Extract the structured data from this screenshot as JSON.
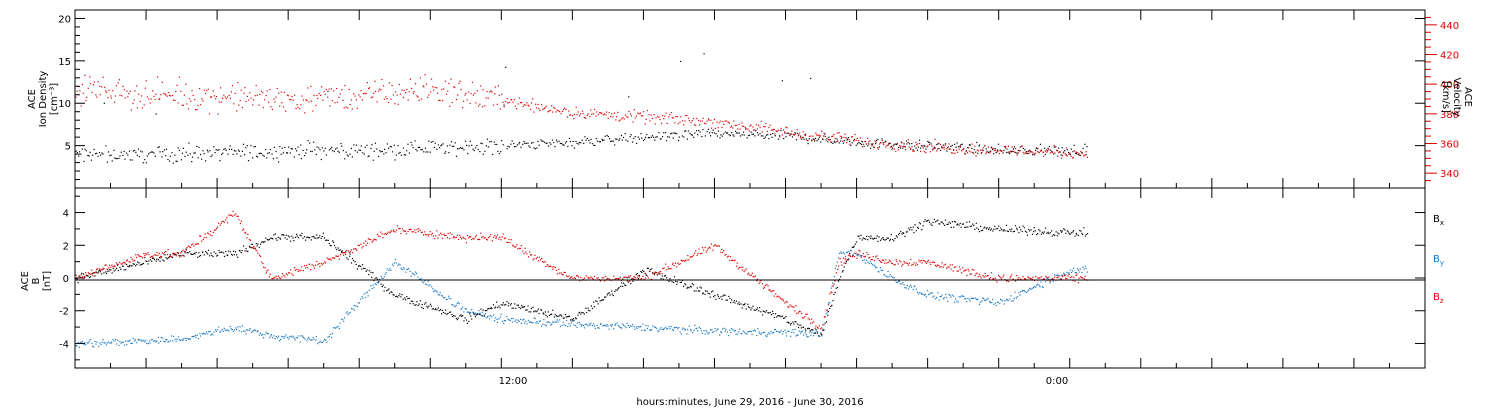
{
  "xlabel": "hours:minutes, June 29, 2016 - June 30, 2016",
  "x_tick_labels": [
    "12:00",
    "0:00"
  ],
  "colors": {
    "density": "#000000",
    "velocity": "#e00000",
    "bx": "#000000",
    "by": "#1a78c2",
    "bz": "#e00000"
  },
  "chart_data": [
    {
      "type": "scatter",
      "panel": "top",
      "left_axis": {
        "title_lines": [
          "ACE",
          "Ion Density",
          "[cm⁻³]"
        ],
        "ylim": [
          0,
          21
        ],
        "ticks": [
          5,
          10,
          15,
          20
        ],
        "tick_labels": [
          "5",
          "10",
          "15",
          "20"
        ]
      },
      "right_axis": {
        "title_lines": [
          "ACE",
          "Velocity",
          "[km/s]"
        ],
        "ylim": [
          330,
          450
        ],
        "ticks": [
          340,
          360,
          380,
          400,
          420,
          440
        ],
        "tick_labels": [
          "340",
          "360",
          "380",
          "400",
          "420",
          "440"
        ]
      },
      "xlim_hours": [
        0,
        38
      ],
      "series": [
        {
          "name": "",
          "axis": "left",
          "color": "#000000",
          "x_hours": [
            0,
            2,
            4,
            6,
            8,
            10,
            12,
            14,
            16,
            18,
            20,
            22,
            24,
            26,
            28
          ],
          "values": [
            4,
            4,
            4.2,
            4.5,
            4.5,
            4.8,
            5,
            5.5,
            6,
            6.5,
            6.2,
            5.5,
            5,
            4.5,
            4.5
          ]
        },
        {
          "name": "",
          "axis": "right",
          "color": "#e00000",
          "x_hours": [
            0,
            2,
            4,
            6,
            8,
            10,
            12,
            14,
            16,
            18,
            20,
            22,
            24,
            26,
            28
          ],
          "values": [
            398,
            393,
            392,
            390,
            392,
            397,
            390,
            381,
            378,
            375,
            368,
            362,
            358,
            356,
            354
          ]
        }
      ]
    },
    {
      "type": "scatter",
      "panel": "bottom",
      "left_axis": {
        "title_lines": [
          "ACE",
          "B",
          "[nT]"
        ],
        "ylim": [
          -5.5,
          5.5
        ],
        "ticks": [
          -4,
          -2,
          0,
          2,
          4
        ],
        "tick_labels": [
          "-4",
          "-2",
          "0",
          "2",
          "4"
        ]
      },
      "legend": [
        {
          "label": "B",
          "sub": "x",
          "color": "#000000"
        },
        {
          "label": "B",
          "sub": "y",
          "color": "#1a78c2"
        },
        {
          "label": "B",
          "sub": "z",
          "color": "#e00000"
        }
      ],
      "xlim_hours": [
        0,
        38
      ],
      "series": [
        {
          "name": "Bx",
          "color": "#000000",
          "x_hours": [
            0,
            2,
            3,
            4.5,
            5.5,
            7,
            9,
            11,
            12,
            14,
            16,
            18,
            20,
            21,
            21.5,
            22,
            23,
            24,
            26,
            28
          ],
          "values": [
            0,
            1,
            1.5,
            1.5,
            2.5,
            2.5,
            -1,
            -2.5,
            -1.5,
            -2.5,
            0.5,
            -1,
            -2.5,
            -3.5,
            0,
            2.5,
            2.5,
            3.5,
            3,
            2.8
          ]
        },
        {
          "name": "By",
          "color": "#1a78c2",
          "x_hours": [
            0,
            2,
            3,
            4.5,
            5.5,
            7,
            9,
            11,
            12,
            14,
            16,
            18,
            20,
            21,
            21.5,
            22,
            23,
            24,
            26,
            28
          ],
          "values": [
            -4,
            -3.8,
            -3.7,
            -3,
            -3.5,
            -3.8,
            1,
            -2,
            -2.5,
            -2.8,
            -3,
            -3.2,
            -3.3,
            -3.4,
            1.5,
            1.5,
            0,
            -1,
            -1.5,
            0.5
          ]
        },
        {
          "name": "Bz",
          "color": "#e00000",
          "x_hours": [
            0,
            2,
            3,
            4.5,
            5.5,
            7,
            9,
            11,
            12,
            14,
            16,
            18,
            20,
            21,
            21.5,
            22,
            23,
            24,
            26,
            28
          ],
          "values": [
            0,
            1.5,
            1.5,
            4,
            0,
            1,
            3,
            2.5,
            2.5,
            0,
            0,
            2,
            -1.5,
            -3,
            1,
            1.5,
            1,
            1,
            0,
            0
          ]
        }
      ]
    }
  ]
}
